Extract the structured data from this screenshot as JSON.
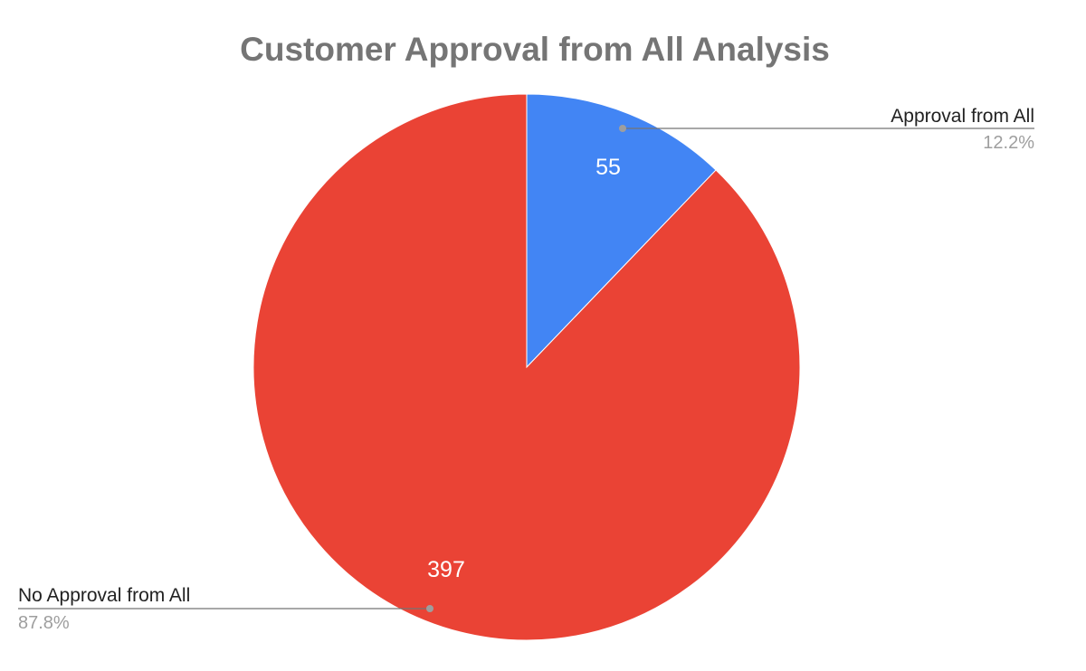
{
  "chart_data": {
    "type": "pie",
    "title": "Customer Approval from All Analysis",
    "start_angle_deg": 0,
    "direction": "clockwise",
    "slices": [
      {
        "label": "Approval from All",
        "value": 55,
        "value_label": "55",
        "percent_label": "12.2%",
        "color": "#4285f4"
      },
      {
        "label": "No Approval from All",
        "value": 397,
        "value_label": "397",
        "percent_label": "87.8%",
        "color": "#ea4335"
      }
    ],
    "legend": "leader-lines"
  }
}
